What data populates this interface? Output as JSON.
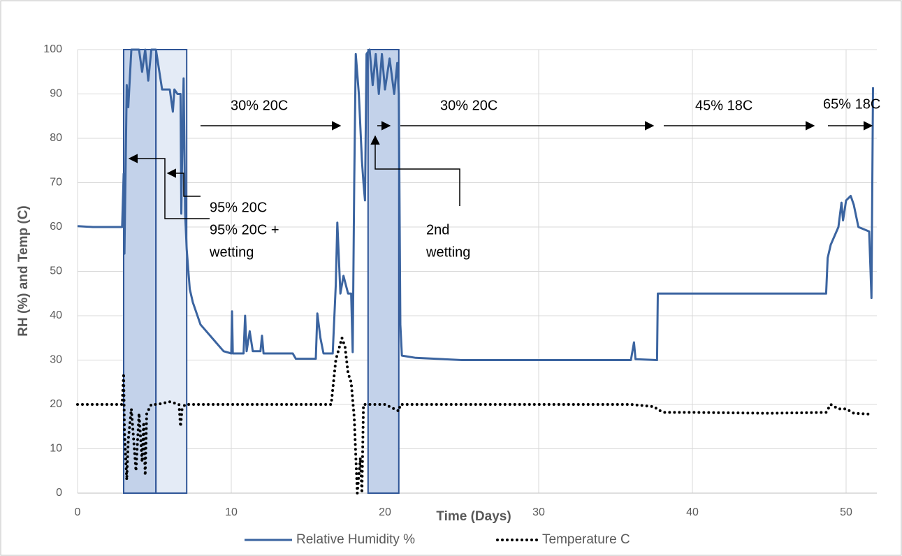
{
  "chart_data": {
    "type": "line",
    "x_label": "Time (Days)",
    "y_label": "RH (%) and Temp (C)",
    "xlim": [
      0,
      52
    ],
    "xticks": [
      0,
      10,
      20,
      30,
      40,
      50
    ],
    "ylim": [
      0,
      100
    ],
    "yticks": [
      0,
      10,
      20,
      30,
      40,
      50,
      60,
      70,
      80,
      90,
      100
    ],
    "grid": true,
    "legend": "bottom",
    "shaded_regions": [
      {
        "x": [
          3,
          5.1
        ],
        "color": "#c3d2ea"
      },
      {
        "x": [
          5.1,
          7.1
        ],
        "color": "#e4ebf6"
      },
      {
        "x": [
          18.9,
          20.9
        ],
        "color": "#c3d2ea"
      }
    ],
    "annotations": [
      "30% 20C",
      "30% 20C",
      "45% 18C",
      "65% 18C",
      "95% 20C",
      "95% 20C +",
      "wetting",
      "2nd",
      "wetting"
    ],
    "series": [
      {
        "name": "Relative Humidity %",
        "color": "#3b64a0",
        "style": "solid",
        "x": [
          0,
          1,
          2,
          2.9,
          3.0,
          3.05,
          3.2,
          3.3,
          3.5,
          4,
          4.2,
          4.4,
          4.6,
          4.8,
          5.1,
          5.5,
          6,
          6.2,
          6.3,
          6.5,
          6.7,
          6.75,
          6.8,
          6.9,
          7.0,
          7.1,
          7.3,
          7.5,
          8,
          8.5,
          9,
          9.5,
          10,
          10.05,
          10.1,
          10.8,
          10.9,
          11,
          11.2,
          11.4,
          11.9,
          12,
          12.1,
          14,
          14.2,
          15.5,
          15.6,
          15.8,
          16,
          16.6,
          16.8,
          16.9,
          17.1,
          17.3,
          17.6,
          17.8,
          17.9,
          18,
          18.1,
          18.3,
          18.5,
          18.6,
          18.7,
          18.8,
          19,
          19.2,
          19.4,
          19.6,
          19.8,
          20,
          20.3,
          20.6,
          20.8,
          20.9,
          21.0,
          21.1,
          22,
          25,
          30,
          36,
          36.2,
          36.3,
          37.7,
          37.75,
          40,
          45,
          48.7,
          48.8,
          49,
          49.5,
          49.7,
          49.8,
          50,
          50.3,
          50.5,
          50.8,
          51.5,
          51.65,
          51.75
        ],
        "values": [
          60.2,
          60,
          60,
          60,
          72,
          54,
          92,
          87,
          100,
          100,
          95,
          100,
          93,
          100,
          100,
          91,
          91,
          86,
          91,
          90,
          90,
          63,
          75,
          93.5,
          63,
          55,
          46,
          43,
          38,
          36,
          34,
          32,
          31.5,
          41,
          31.5,
          31.5,
          40,
          32,
          36.5,
          32,
          32,
          35.5,
          31.5,
          31.5,
          30.3,
          30.3,
          40.5,
          35,
          31.5,
          31.5,
          47,
          61,
          45,
          49,
          45,
          45,
          31.8,
          70,
          99,
          90,
          75,
          70,
          66,
          99,
          100,
          92,
          99,
          90,
          99,
          91,
          98,
          90,
          97,
          90,
          38,
          31,
          30.5,
          30,
          30,
          30,
          34,
          30.2,
          30,
          45,
          45,
          45,
          45,
          53,
          56,
          60,
          65.5,
          61.5,
          66,
          67,
          65,
          60,
          59,
          44,
          91.5
        ]
      },
      {
        "name": "Temperature C",
        "color": "#000000",
        "style": "dotted",
        "x": [
          0,
          2.9,
          3.0,
          3.05,
          3.2,
          3.3,
          3.5,
          3.8,
          4,
          4.2,
          4.3,
          4.4,
          4.5,
          4.8,
          5.2,
          6,
          6.6,
          6.7,
          6.8,
          7,
          10,
          15,
          16.5,
          16.8,
          17.2,
          17.4,
          17.6,
          17.8,
          18,
          18.2,
          18.4,
          18.5,
          18.6,
          20,
          20.9,
          21,
          25,
          30,
          36,
          37.5,
          37.8,
          38.2,
          40,
          45,
          48.7,
          49,
          49.5,
          50,
          50.5,
          51.7
        ],
        "values": [
          20,
          20,
          27,
          14,
          3,
          12,
          19,
          5,
          18,
          7,
          16,
          4,
          18,
          20,
          20,
          20.6,
          20,
          15,
          19,
          20,
          20,
          20,
          20,
          30,
          35,
          33,
          27,
          25,
          17,
          0,
          8,
          0,
          20,
          20,
          18.5,
          20,
          20,
          20,
          20,
          19.5,
          18.7,
          18.2,
          18.2,
          18,
          18.2,
          20,
          19,
          19,
          18,
          17.8
        ]
      }
    ]
  }
}
